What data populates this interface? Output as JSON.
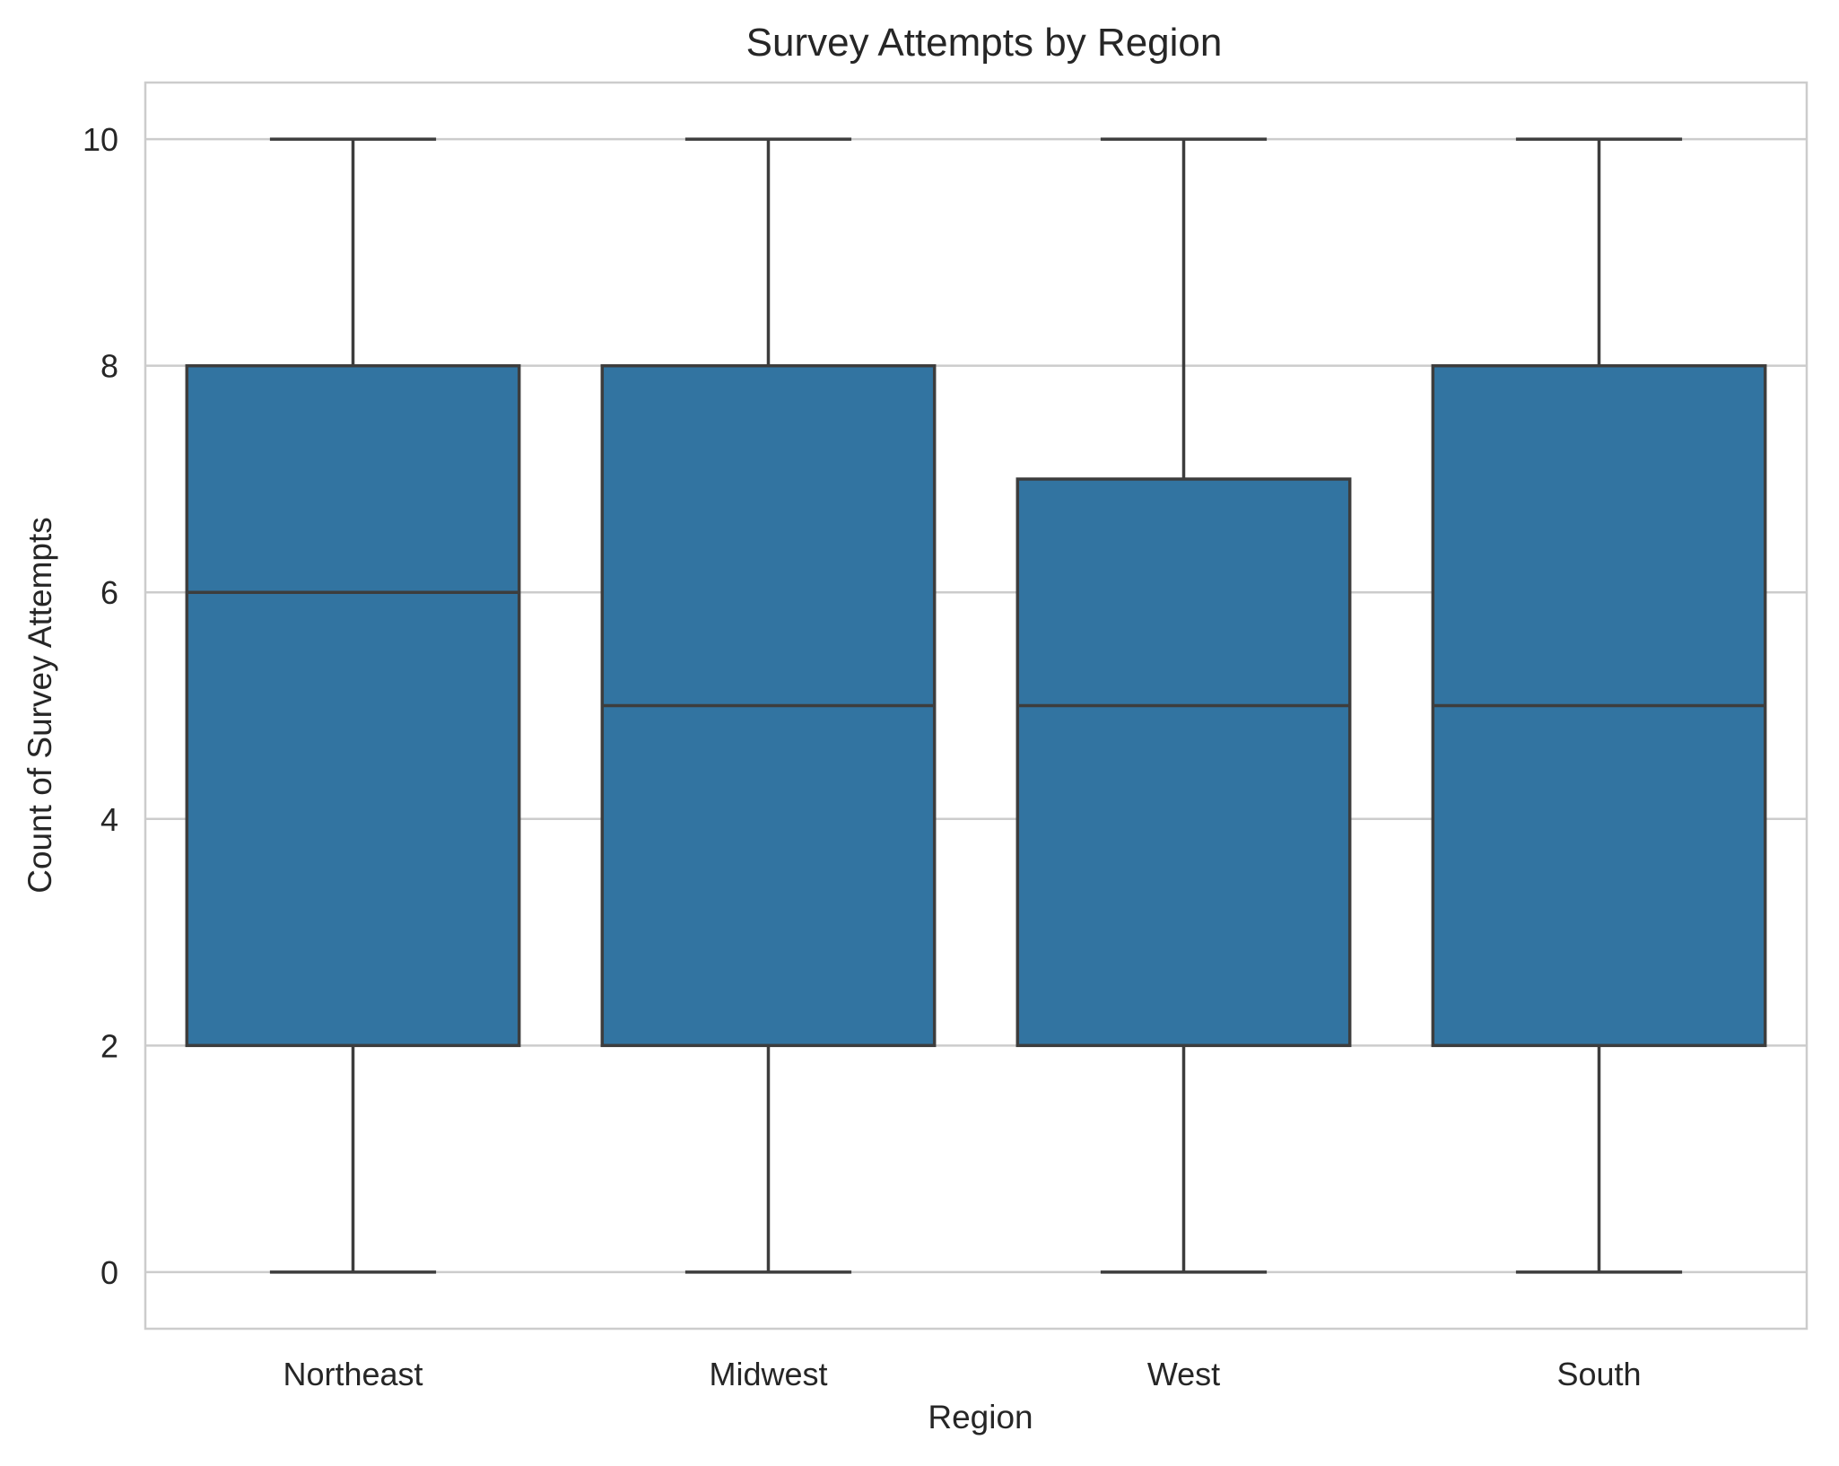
{
  "chart_data": {
    "type": "box",
    "title": "Survey Attempts by Region",
    "xlabel": "Region",
    "ylabel": "Count of Survey Attempts",
    "categories": [
      "Northeast",
      "Midwest",
      "West",
      "South"
    ],
    "boxes": [
      {
        "category": "Northeast",
        "whisker_low": 0,
        "q1": 2,
        "median": 6,
        "q3": 8,
        "whisker_high": 10
      },
      {
        "category": "Midwest",
        "whisker_low": 0,
        "q1": 2,
        "median": 5,
        "q3": 8,
        "whisker_high": 10
      },
      {
        "category": "West",
        "whisker_low": 0,
        "q1": 2,
        "median": 5,
        "q3": 7,
        "whisker_high": 10
      },
      {
        "category": "South",
        "whisker_low": 0,
        "q1": 2,
        "median": 5,
        "q3": 8,
        "whisker_high": 10
      }
    ],
    "yticks": [
      0,
      2,
      4,
      6,
      8,
      10
    ],
    "ylim": [
      -0.5,
      10.5
    ],
    "grid": "horizontal",
    "legend": "none",
    "colors": {
      "box_fill": "#3274a1",
      "line": "#3d3d3d",
      "grid": "#cccccc",
      "text": "#262626"
    }
  }
}
